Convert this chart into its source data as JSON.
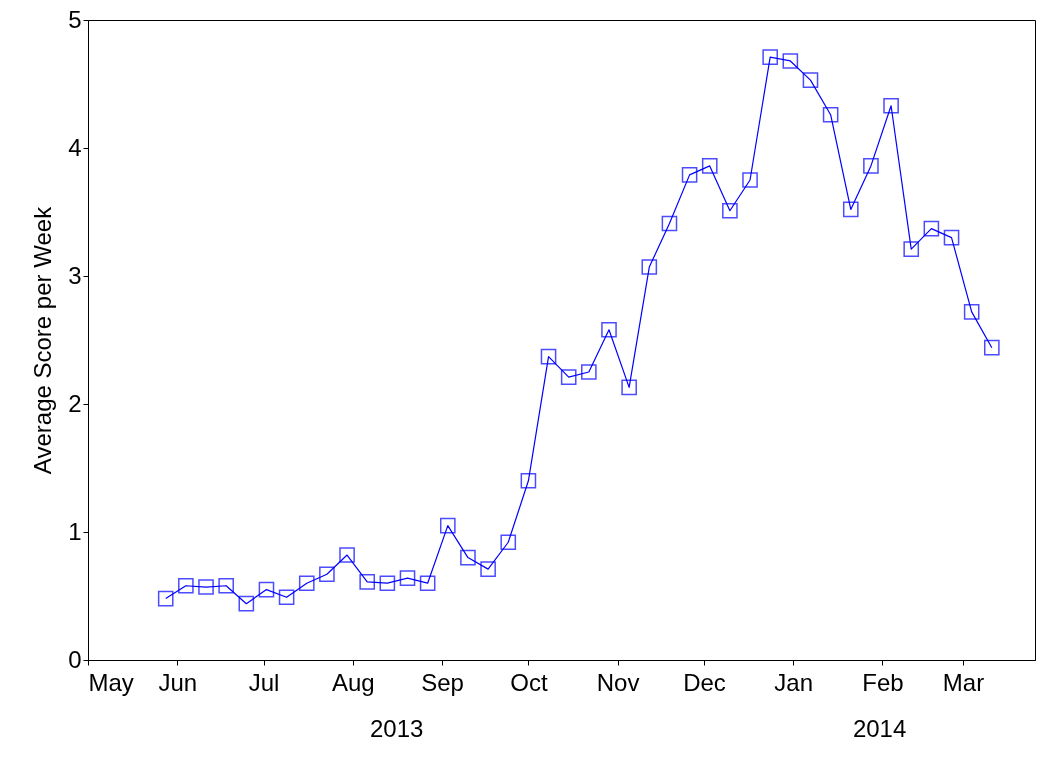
{
  "chart_data": {
    "type": "line",
    "ylabel": "Average Score per Week",
    "x": [
      "2013-05-28",
      "2013-06-04",
      "2013-06-11",
      "2013-06-18",
      "2013-06-25",
      "2013-07-02",
      "2013-07-09",
      "2013-07-16",
      "2013-07-23",
      "2013-07-30",
      "2013-08-06",
      "2013-08-13",
      "2013-08-20",
      "2013-08-27",
      "2013-09-03",
      "2013-09-10",
      "2013-09-17",
      "2013-09-24",
      "2013-10-01",
      "2013-10-08",
      "2013-10-15",
      "2013-10-22",
      "2013-10-29",
      "2013-11-05",
      "2013-11-12",
      "2013-11-19",
      "2013-11-26",
      "2013-12-03",
      "2013-12-10",
      "2013-12-17",
      "2013-12-24",
      "2013-12-31",
      "2014-01-07",
      "2014-01-14",
      "2014-01-21",
      "2014-01-28",
      "2014-02-04",
      "2014-02-11",
      "2014-02-18",
      "2014-02-25",
      "2014-03-04",
      "2014-03-11"
    ],
    "series": [
      {
        "color": "#0000ff",
        "values": [
          0.48,
          0.58,
          0.57,
          0.58,
          0.44,
          0.55,
          0.49,
          0.6,
          0.67,
          0.82,
          0.61,
          0.6,
          0.64,
          0.6,
          1.05,
          0.8,
          0.71,
          0.92,
          1.4,
          2.37,
          2.21,
          2.25,
          2.58,
          2.13,
          3.07,
          3.41,
          3.79,
          3.86,
          3.51,
          3.75,
          4.71,
          4.68,
          4.53,
          4.26,
          3.52,
          3.86,
          4.33,
          3.21,
          3.37,
          3.3,
          2.72,
          2.44
        ]
      }
    ],
    "xlim": [
      "2013-05-01",
      "2014-03-26"
    ],
    "xticks": [
      {
        "value": "2013-05-01",
        "label": "May"
      },
      {
        "value": "2013-06-01",
        "label": "Jun"
      },
      {
        "value": "2013-07-01",
        "label": "Jul"
      },
      {
        "value": "2013-08-01",
        "label": "Aug"
      },
      {
        "value": "2013-09-01",
        "label": "Sep"
      },
      {
        "value": "2013-10-01",
        "label": "Oct"
      },
      {
        "value": "2013-11-01",
        "label": "Nov"
      },
      {
        "value": "2013-12-01",
        "label": "Dec"
      },
      {
        "value": "2014-01-01",
        "label": "Jan"
      },
      {
        "value": "2014-02-01",
        "label": "Feb"
      },
      {
        "value": "2014-03-01",
        "label": "Mar"
      }
    ],
    "ylim": [
      0,
      5
    ],
    "yticks": [
      0,
      1,
      2,
      3,
      4,
      5
    ],
    "annotations": [
      "2013",
      "2014"
    ],
    "grid": false,
    "marker": "square",
    "line_style": "solid"
  }
}
